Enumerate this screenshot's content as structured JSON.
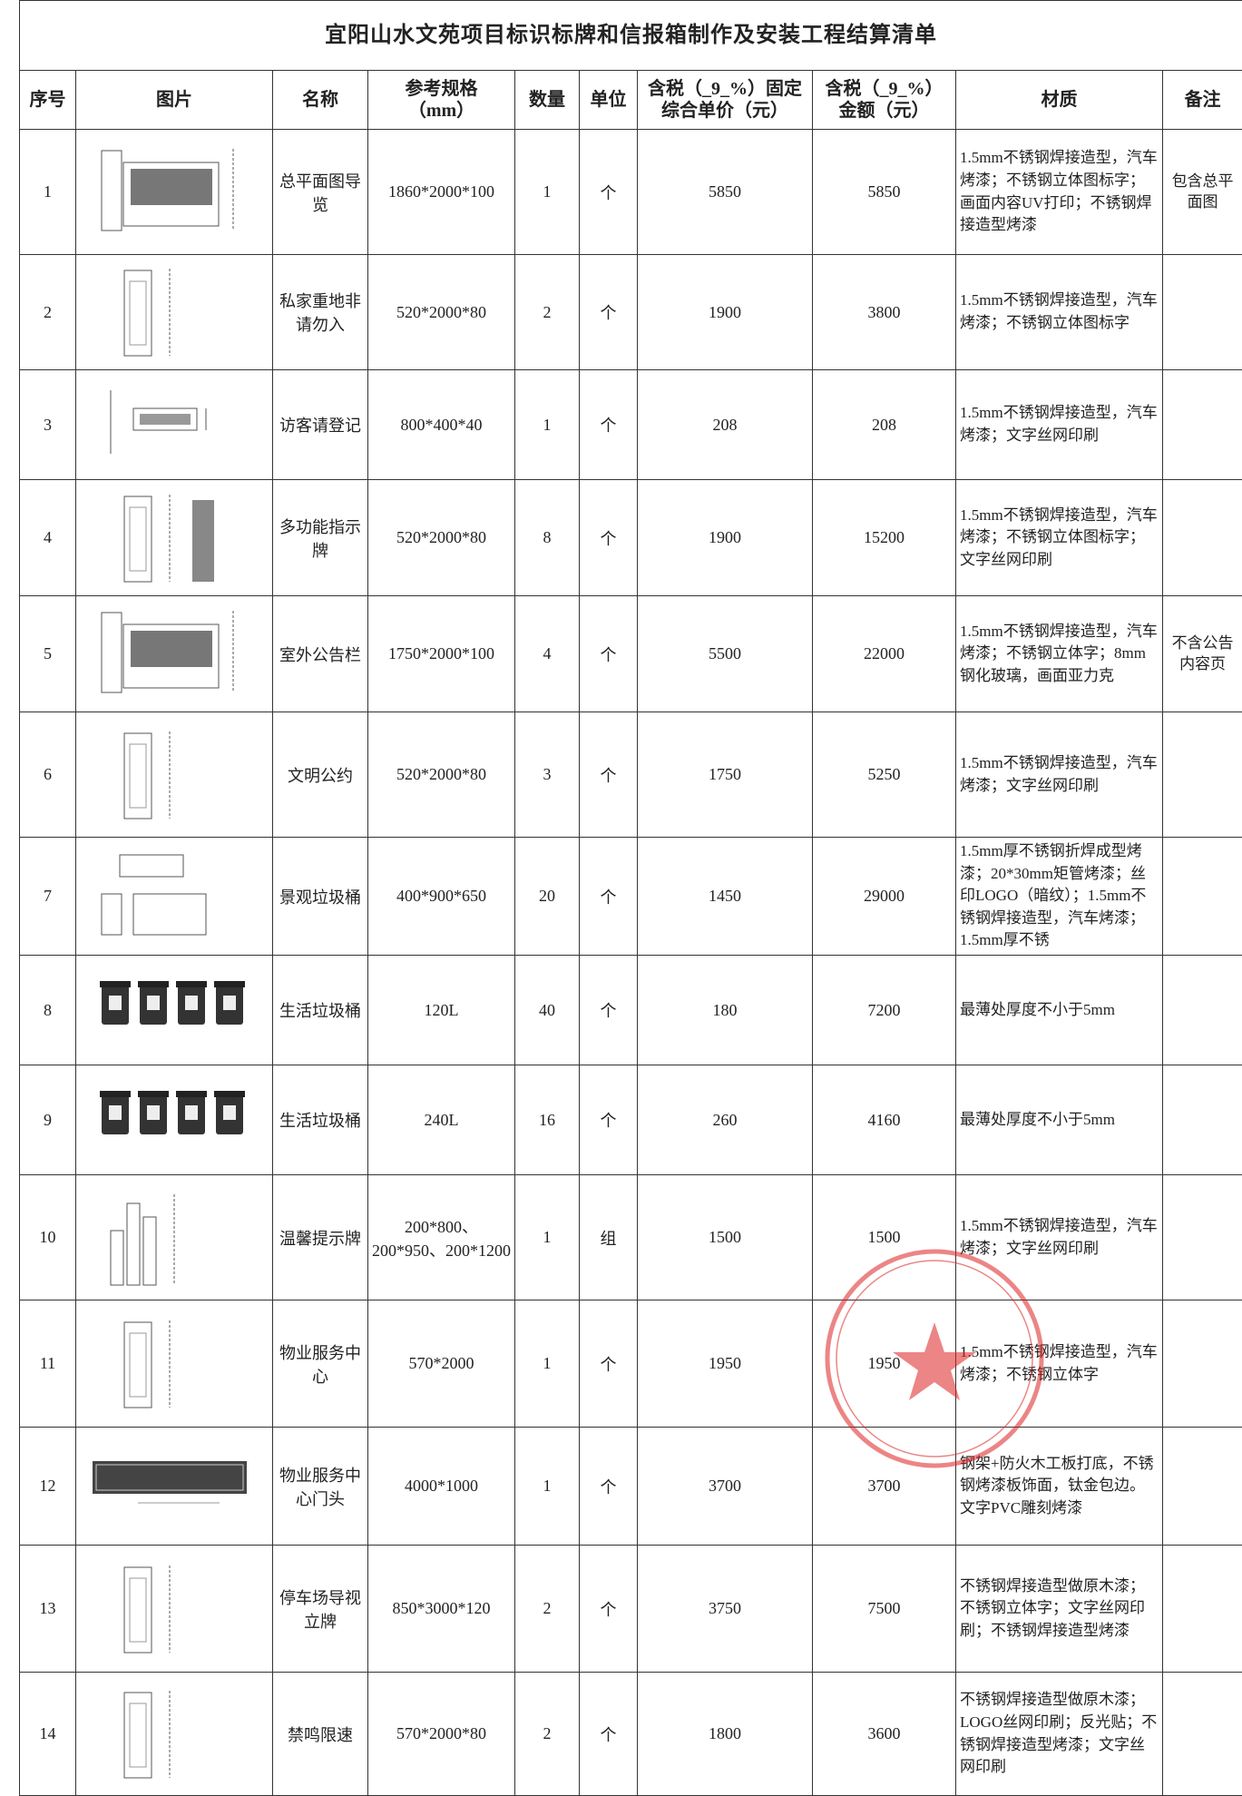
{
  "title": "宜阳山水文苑项目标识标牌和信报箱制作及安装工程结算清单",
  "table": {
    "headers": [
      "序号",
      "图片",
      "名称",
      "参考规格\n（mm）",
      "数量",
      "单位",
      "含税（_9_%）固定\n综合单价（元）",
      "含税（_9_%）\n金额（元）",
      "材质",
      "备注"
    ],
    "rows": [
      {
        "no": 1,
        "name": "总平面图导览",
        "spec": "1860*2000*100",
        "qty": 1,
        "unit": "个",
        "price": 5850,
        "amount": 5850,
        "material": "1.5mm不锈钢焊接造型，汽车烤漆；不锈钢立体图标字；画面内容UV打印；不锈钢焊接造型烤漆",
        "note": "包含总平面图"
      },
      {
        "no": 2,
        "name": "私家重地非请勿入",
        "spec": "520*2000*80",
        "qty": 2,
        "unit": "个",
        "price": 1900,
        "amount": 3800,
        "material": "1.5mm不锈钢焊接造型，汽车烤漆；不锈钢立体图标字"
      },
      {
        "no": 3,
        "name": "访客请登记",
        "spec": "800*400*40",
        "qty": 1,
        "unit": "个",
        "price": 208,
        "amount": 208,
        "material": "1.5mm不锈钢焊接造型，汽车烤漆；文字丝网印刷"
      },
      {
        "no": 4,
        "name": "多功能指示牌",
        "spec": "520*2000*80",
        "qty": 8,
        "unit": "个",
        "price": 1900,
        "amount": 15200,
        "material": "1.5mm不锈钢焊接造型，汽车烤漆；不锈钢立体图标字；文字丝网印刷"
      },
      {
        "no": 5,
        "name": "室外公告栏",
        "spec": "1750*2000*100",
        "qty": 4,
        "unit": "个",
        "price": 5500,
        "amount": 22000,
        "material": "1.5mm不锈钢焊接造型，汽车烤漆；不锈钢立体字；8mm钢化玻璃，画面亚力克",
        "note": "不含公告内容页"
      },
      {
        "no": 6,
        "name": "文明公约",
        "spec": "520*2000*80",
        "qty": 3,
        "unit": "个",
        "price": 1750,
        "amount": 5250,
        "material": "1.5mm不锈钢焊接造型，汽车烤漆；文字丝网印刷"
      },
      {
        "no": 7,
        "name": "景观垃圾桶",
        "spec": "400*900*650",
        "qty": 20,
        "unit": "个",
        "price": 1450,
        "amount": 29000,
        "material": "1.5mm厚不锈钢折焊成型烤漆；20*30mm矩管烤漆；丝印LOGO（暗纹）；1.5mm不锈钢焊接造型，汽车烤漆；1.5mm厚不锈"
      },
      {
        "no": 8,
        "name": "生活垃圾桶",
        "spec": "120L",
        "qty": 40,
        "unit": "个",
        "price": 180,
        "amount": 7200,
        "material": "最薄处厚度不小于5mm"
      },
      {
        "no": 9,
        "name": "生活垃圾桶",
        "spec": "240L",
        "qty": 16,
        "unit": "个",
        "price": 260,
        "amount": 4160,
        "material": "最薄处厚度不小于5mm"
      },
      {
        "no": 10,
        "name": "温馨提示牌",
        "spec": "200*800、200*950、200*1200",
        "qty": 1,
        "unit": "组",
        "price": 1500,
        "amount": 1500,
        "material": "1.5mm不锈钢焊接造型，汽车烤漆；文字丝网印刷"
      },
      {
        "no": 11,
        "name": "物业服务中心",
        "spec": "570*2000",
        "qty": 1,
        "unit": "个",
        "price": 1950,
        "amount": 1950,
        "material": "1.5mm不锈钢焊接造型，汽车烤漆；不锈钢立体字"
      },
      {
        "no": 12,
        "name": "物业服务中心门头",
        "spec": "4000*1000",
        "qty": 1,
        "unit": "个",
        "price": 3700,
        "amount": 3700,
        "material": "钢架+防火木工板打底，不锈钢烤漆板饰面，钛金包边。文字PVC雕刻烤漆"
      },
      {
        "no": 13,
        "name": "停车场导视立牌",
        "spec": "850*3000*120",
        "qty": 2,
        "unit": "个",
        "price": 3750,
        "amount": 7500,
        "material": "不锈钢焊接造型做原木漆；不锈钢立体字；文字丝网印刷；不锈钢焊接造型烤漆"
      },
      {
        "no": 14,
        "name": "禁鸣限速",
        "spec": "570*2000*80",
        "qty": 2,
        "unit": "个",
        "price": 1800,
        "amount": 3600,
        "material": "不锈钢焊接造型做原木漆；LOGO丝网印刷；反光贴；不锈钢焊接造型烤漆；文字丝网印刷"
      }
    ]
  }
}
